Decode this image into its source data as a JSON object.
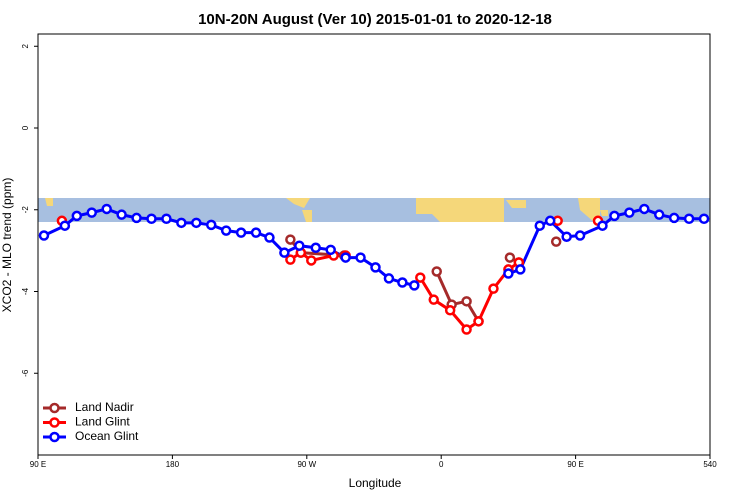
{
  "chart_data": {
    "type": "line",
    "title": "10N-20N August (Ver 10)   2015-01-01 to 2020-12-18",
    "x_label": "Longitude",
    "y_label": "XCO2 - MLO trend (ppm)",
    "xlim": [
      90,
      540
    ],
    "ylim": [
      -8,
      2.3
    ],
    "xticks": [
      {
        "value": 90,
        "label": "90 E"
      },
      180,
      {
        "value": 270,
        "label": "90 W"
      },
      {
        "value": 360,
        "label": "0"
      },
      {
        "value": 450,
        "label": "90 E"
      },
      540
    ],
    "yticks": [
      -6,
      -4,
      -2,
      0,
      2
    ],
    "legend": "bottom-left",
    "series": [
      {
        "name": "Land Nadir",
        "color": "#a52a2a",
        "x": [
          259,
          266,
          295,
          326,
          357,
          367,
          377,
          385,
          395,
          406,
          412,
          425,
          437
        ],
        "values": [
          -2.73,
          -3.05,
          -3.12,
          null,
          -3.51,
          -4.32,
          -4.24,
          -4.73,
          null,
          -3.17,
          -3.29,
          null,
          -2.78
        ]
      },
      {
        "name": "Land Glint",
        "color": "#ff0000",
        "x": [
          106,
          180,
          259,
          266,
          273,
          288,
          296,
          320,
          346,
          355,
          366,
          377,
          385,
          395,
          405,
          412,
          425,
          438,
          450,
          465
        ],
        "values": [
          -2.27,
          null,
          -3.22,
          -3.05,
          -3.24,
          -3.12,
          -3.12,
          null,
          -3.66,
          -4.2,
          -4.46,
          -4.93,
          -4.73,
          -3.93,
          -3.46,
          -3.29,
          null,
          -2.27,
          null,
          -2.27
        ]
      },
      {
        "name": "Ocean Glint",
        "color": "#0000ff",
        "x": [
          94,
          108,
          116,
          126,
          136,
          146,
          156,
          166,
          176,
          186,
          196,
          206,
          216,
          226,
          236,
          245,
          255,
          265,
          276,
          286,
          296,
          306,
          316,
          325,
          334,
          342,
          374,
          405,
          413,
          426,
          433,
          444,
          453,
          468,
          476,
          486,
          496,
          506,
          516,
          526,
          536
        ],
        "values": [
          -2.63,
          -2.39,
          -2.15,
          -2.07,
          -1.98,
          -2.12,
          -2.2,
          -2.22,
          -2.22,
          -2.32,
          -2.32,
          -2.37,
          -2.51,
          -2.56,
          -2.56,
          -2.68,
          -3.05,
          -2.88,
          -2.93,
          -2.98,
          -3.17,
          -3.17,
          -3.41,
          -3.68,
          -3.78,
          -3.85,
          null,
          -3.56,
          -3.46,
          -2.39,
          -2.27,
          -2.66,
          -2.63,
          -2.39,
          -2.15,
          -2.07,
          -1.98,
          -2.12,
          -2.2,
          -2.22,
          -2.22
        ]
      }
    ]
  }
}
